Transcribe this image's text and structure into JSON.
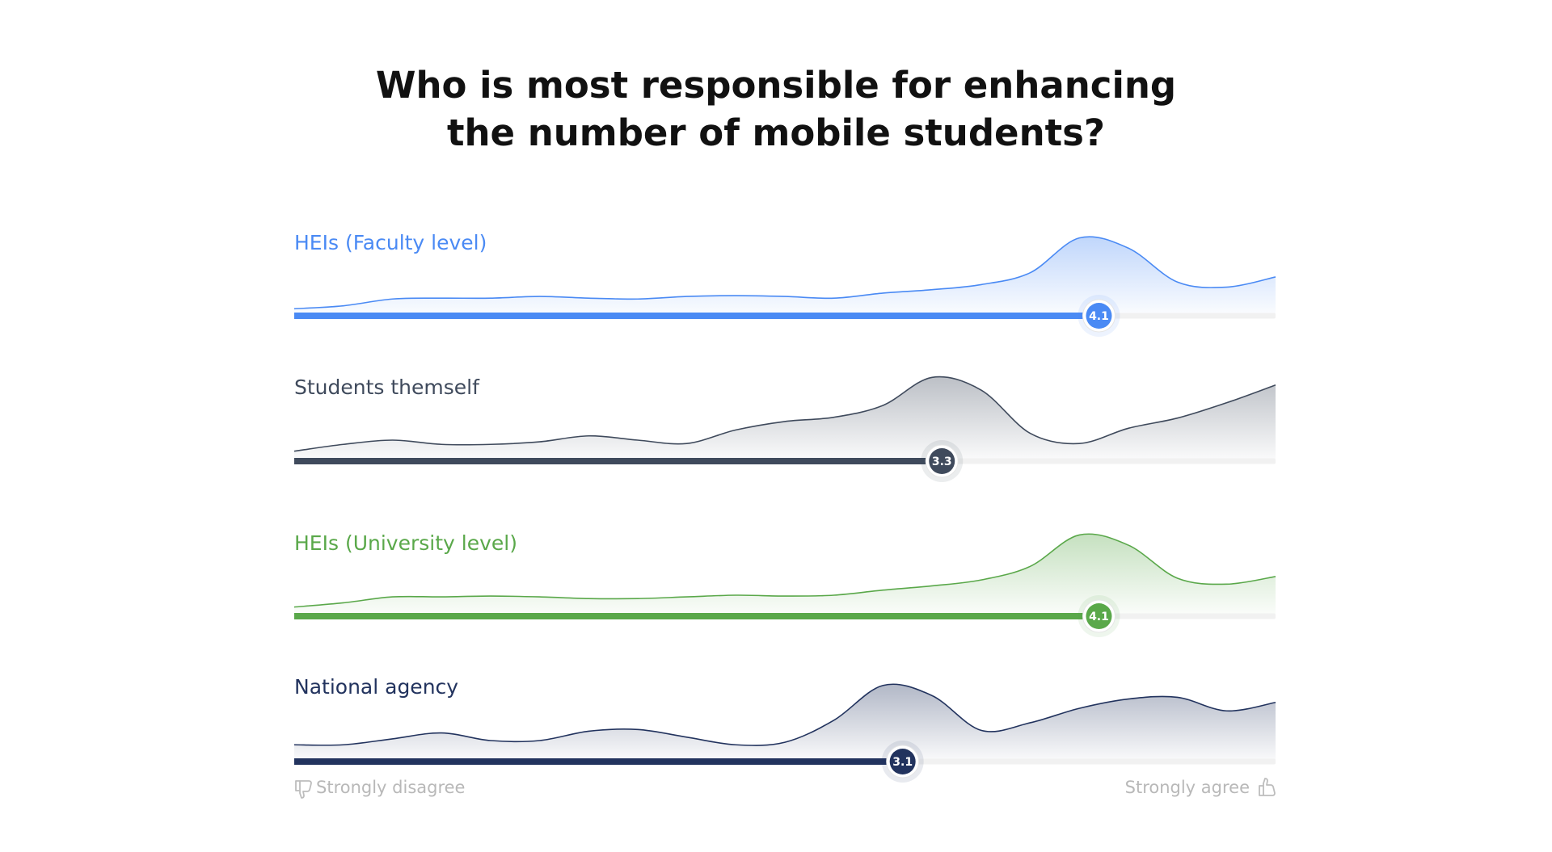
{
  "title": [
    "Who is most responsible for enhancing",
    "the number of mobile students?"
  ],
  "scale_labels": {
    "left": "Strongly disagree",
    "right": "Strongly agree"
  },
  "chart_data": [
    {
      "type": "slider-density",
      "title": "HEIs (Faculty level)",
      "color": "#4a8af4",
      "mean": 4.1,
      "xlim": [
        0,
        5
      ],
      "ylim": [
        0,
        100
      ],
      "x": [
        0,
        0.25,
        0.5,
        0.75,
        1,
        1.25,
        1.5,
        1.75,
        2,
        2.25,
        2.5,
        2.75,
        3,
        3.25,
        3.5,
        3.75,
        4,
        4.25,
        4.5,
        4.75,
        5
      ],
      "values": [
        3.5,
        7,
        15,
        16,
        16,
        18,
        16,
        15,
        18,
        19,
        18,
        16,
        22,
        26,
        32,
        46,
        87,
        75,
        35,
        29,
        41
      ]
    },
    {
      "type": "slider-density",
      "title": "Students themself",
      "color": "#3f4a5c",
      "mean": 3.3,
      "xlim": [
        0,
        5
      ],
      "ylim": [
        0,
        100
      ],
      "x": [
        0,
        0.25,
        0.5,
        0.75,
        1,
        1.25,
        1.5,
        1.75,
        2,
        2.25,
        2.5,
        2.75,
        3,
        3.25,
        3.5,
        3.75,
        4,
        4.25,
        4.5,
        4.75,
        5
      ],
      "values": [
        7,
        15,
        20,
        15,
        15,
        18,
        25,
        20,
        16,
        32,
        42,
        47,
        61,
        94,
        79,
        28,
        16,
        34,
        46,
        64,
        85
      ]
    },
    {
      "type": "slider-density",
      "title": "HEIs (University level)",
      "color": "#5aa84a",
      "mean": 4.1,
      "xlim": [
        0,
        5
      ],
      "ylim": [
        0,
        100
      ],
      "x": [
        0,
        0.25,
        0.5,
        0.75,
        1,
        1.25,
        1.5,
        1.75,
        2,
        2.25,
        2.5,
        2.75,
        3,
        3.25,
        3.5,
        3.75,
        4,
        4.25,
        4.5,
        4.75,
        5
      ],
      "values": [
        6,
        11,
        18,
        18,
        19,
        18,
        16,
        16,
        18,
        20,
        19,
        20,
        26,
        31,
        38,
        54,
        91,
        79,
        40,
        33,
        42
      ]
    },
    {
      "type": "slider-density",
      "title": "National agency",
      "color": "#22335e",
      "mean": 3.1,
      "xlim": [
        0,
        5
      ],
      "ylim": [
        0,
        100
      ],
      "x": [
        0,
        0.25,
        0.5,
        0.75,
        1,
        1.25,
        1.5,
        1.75,
        2,
        2.25,
        2.5,
        2.75,
        3,
        3.25,
        3.5,
        3.75,
        4,
        4.25,
        4.5,
        4.75,
        5
      ],
      "values": [
        15,
        15,
        22,
        29,
        20,
        20,
        31,
        33,
        24,
        15,
        18,
        44,
        85,
        73,
        32,
        41,
        58,
        69,
        71,
        55,
        65
      ]
    }
  ]
}
